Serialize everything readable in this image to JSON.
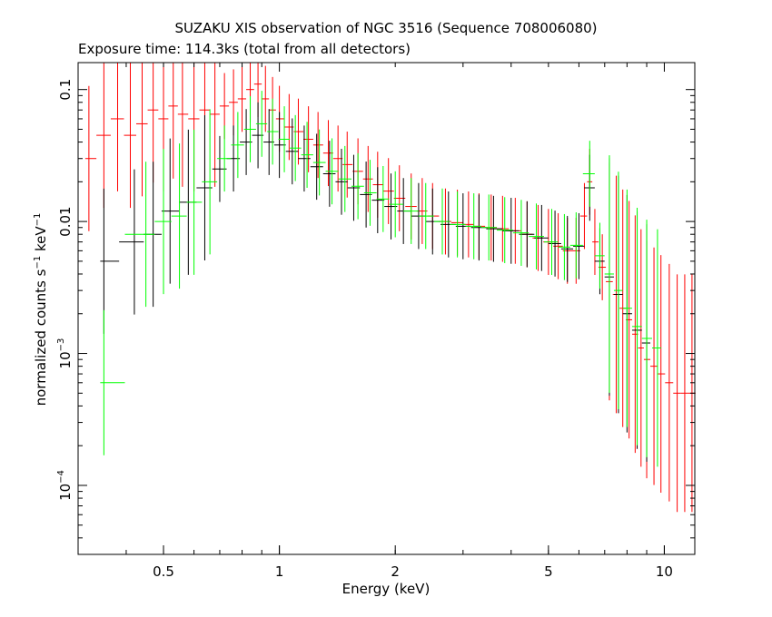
{
  "chart_data": {
    "type": "scatter",
    "title": "SUZAKU XIS observation of NGC 3516 (Sequence 708006080)",
    "subtitle": "Exposure time: 114.3ks (total from all detectors)",
    "xlabel": "Energy (keV)",
    "ylabel": {
      "prefix": "normalized counts s",
      "mid": " keV",
      "sup": "−1"
    },
    "x_scale": "log",
    "y_scale": "log",
    "xlim": [
      0.3,
      12
    ],
    "ylim": [
      3e-05,
      0.16
    ],
    "x_ticks": [
      {
        "value": 0.5,
        "label": "0.5"
      },
      {
        "value": 1,
        "label": "1"
      },
      {
        "value": 2,
        "label": "2"
      },
      {
        "value": 5,
        "label": "5"
      },
      {
        "value": 10,
        "label": "10"
      }
    ],
    "y_ticks": [
      {
        "value": 0.1,
        "label": "0.1",
        "sup": ""
      },
      {
        "value": 0.01,
        "label": "0.01",
        "sup": ""
      },
      {
        "value": 0.001,
        "label": "10",
        "sup": "−3"
      },
      {
        "value": 0.0001,
        "label": "10",
        "sup": "−4"
      }
    ],
    "series": [
      {
        "color": "#ff0000",
        "points": [
          {
            "x": 0.32,
            "y": 0.03
          },
          {
            "x": 0.35,
            "y": 0.045
          },
          {
            "x": 0.38,
            "y": 0.06
          },
          {
            "x": 0.41,
            "y": 0.045
          },
          {
            "x": 0.44,
            "y": 0.055
          },
          {
            "x": 0.47,
            "y": 0.07
          },
          {
            "x": 0.5,
            "y": 0.06
          },
          {
            "x": 0.53,
            "y": 0.075
          },
          {
            "x": 0.56,
            "y": 0.065
          },
          {
            "x": 0.6,
            "y": 0.06
          },
          {
            "x": 0.64,
            "y": 0.07
          },
          {
            "x": 0.68,
            "y": 0.065
          },
          {
            "x": 0.72,
            "y": 0.075
          },
          {
            "x": 0.76,
            "y": 0.08
          },
          {
            "x": 0.8,
            "y": 0.085
          },
          {
            "x": 0.84,
            "y": 0.1
          },
          {
            "x": 0.88,
            "y": 0.11
          },
          {
            "x": 0.92,
            "y": 0.085
          },
          {
            "x": 0.96,
            "y": 0.07
          },
          {
            "x": 1.0,
            "y": 0.06
          },
          {
            "x": 1.06,
            "y": 0.052
          },
          {
            "x": 1.12,
            "y": 0.048
          },
          {
            "x": 1.19,
            "y": 0.042
          },
          {
            "x": 1.26,
            "y": 0.038
          },
          {
            "x": 1.34,
            "y": 0.033
          },
          {
            "x": 1.42,
            "y": 0.03
          },
          {
            "x": 1.5,
            "y": 0.027
          },
          {
            "x": 1.6,
            "y": 0.024
          },
          {
            "x": 1.7,
            "y": 0.021
          },
          {
            "x": 1.8,
            "y": 0.019
          },
          {
            "x": 1.92,
            "y": 0.017
          },
          {
            "x": 2.05,
            "y": 0.015
          },
          {
            "x": 2.2,
            "y": 0.013
          },
          {
            "x": 2.35,
            "y": 0.012
          },
          {
            "x": 2.5,
            "y": 0.011
          },
          {
            "x": 2.7,
            "y": 0.01
          },
          {
            "x": 2.9,
            "y": 0.0098
          },
          {
            "x": 3.1,
            "y": 0.0095
          },
          {
            "x": 3.3,
            "y": 0.0092
          },
          {
            "x": 3.55,
            "y": 0.009
          },
          {
            "x": 3.8,
            "y": 0.0088
          },
          {
            "x": 4.1,
            "y": 0.0085
          },
          {
            "x": 4.4,
            "y": 0.008
          },
          {
            "x": 4.7,
            "y": 0.0075
          },
          {
            "x": 5.0,
            "y": 0.007
          },
          {
            "x": 5.3,
            "y": 0.0065
          },
          {
            "x": 5.6,
            "y": 0.006
          },
          {
            "x": 5.9,
            "y": 0.006
          },
          {
            "x": 6.2,
            "y": 0.011
          },
          {
            "x": 6.4,
            "y": 0.02
          },
          {
            "x": 6.6,
            "y": 0.007
          },
          {
            "x": 6.9,
            "y": 0.0045
          },
          {
            "x": 7.2,
            "y": 0.0035
          },
          {
            "x": 7.5,
            "y": 0.0028
          },
          {
            "x": 7.8,
            "y": 0.0022
          },
          {
            "x": 8.1,
            "y": 0.0018
          },
          {
            "x": 8.4,
            "y": 0.0014
          },
          {
            "x": 8.7,
            "y": 0.0011
          },
          {
            "x": 9.0,
            "y": 0.0009
          },
          {
            "x": 9.4,
            "y": 0.0008
          },
          {
            "x": 9.8,
            "y": 0.0007
          },
          {
            "x": 10.3,
            "y": 0.0006
          },
          {
            "x": 10.8,
            "y": 0.0005
          },
          {
            "x": 11.3,
            "y": 0.0005
          },
          {
            "x": 11.8,
            "y": 0.0005
          }
        ]
      },
      {
        "color": "#000000",
        "points": [
          {
            "x": 0.35,
            "y": 0.005
          },
          {
            "x": 0.42,
            "y": 0.007
          },
          {
            "x": 0.47,
            "y": 0.008
          },
          {
            "x": 0.52,
            "y": 0.012
          },
          {
            "x": 0.58,
            "y": 0.014
          },
          {
            "x": 0.64,
            "y": 0.018
          },
          {
            "x": 0.7,
            "y": 0.025
          },
          {
            "x": 0.76,
            "y": 0.03
          },
          {
            "x": 0.82,
            "y": 0.04
          },
          {
            "x": 0.88,
            "y": 0.045
          },
          {
            "x": 0.94,
            "y": 0.04
          },
          {
            "x": 1.0,
            "y": 0.038
          },
          {
            "x": 1.08,
            "y": 0.034
          },
          {
            "x": 1.16,
            "y": 0.03
          },
          {
            "x": 1.25,
            "y": 0.026
          },
          {
            "x": 1.35,
            "y": 0.023
          },
          {
            "x": 1.45,
            "y": 0.02
          },
          {
            "x": 1.56,
            "y": 0.018
          },
          {
            "x": 1.68,
            "y": 0.016
          },
          {
            "x": 1.8,
            "y": 0.0145
          },
          {
            "x": 1.95,
            "y": 0.013
          },
          {
            "x": 2.1,
            "y": 0.012
          },
          {
            "x": 2.3,
            "y": 0.011
          },
          {
            "x": 2.5,
            "y": 0.01
          },
          {
            "x": 2.75,
            "y": 0.0095
          },
          {
            "x": 3.0,
            "y": 0.0092
          },
          {
            "x": 3.3,
            "y": 0.009
          },
          {
            "x": 3.6,
            "y": 0.0088
          },
          {
            "x": 4.0,
            "y": 0.0085
          },
          {
            "x": 4.4,
            "y": 0.008
          },
          {
            "x": 4.8,
            "y": 0.0075
          },
          {
            "x": 5.2,
            "y": 0.0068
          },
          {
            "x": 5.6,
            "y": 0.0062
          },
          {
            "x": 6.0,
            "y": 0.0065
          },
          {
            "x": 6.4,
            "y": 0.018
          },
          {
            "x": 6.8,
            "y": 0.005
          },
          {
            "x": 7.2,
            "y": 0.0038
          },
          {
            "x": 7.6,
            "y": 0.0028
          },
          {
            "x": 8.0,
            "y": 0.002
          },
          {
            "x": 8.5,
            "y": 0.0015
          },
          {
            "x": 9.0,
            "y": 0.0012
          }
        ]
      },
      {
        "color": "#00ff00",
        "points": [
          {
            "x": 0.35,
            "y": 0.0006
          },
          {
            "x": 0.45,
            "y": 0.008
          },
          {
            "x": 0.5,
            "y": 0.01
          },
          {
            "x": 0.55,
            "y": 0.011
          },
          {
            "x": 0.6,
            "y": 0.014
          },
          {
            "x": 0.66,
            "y": 0.02
          },
          {
            "x": 0.72,
            "y": 0.03
          },
          {
            "x": 0.78,
            "y": 0.038
          },
          {
            "x": 0.84,
            "y": 0.05
          },
          {
            "x": 0.9,
            "y": 0.055
          },
          {
            "x": 0.96,
            "y": 0.048
          },
          {
            "x": 1.03,
            "y": 0.042
          },
          {
            "x": 1.1,
            "y": 0.036
          },
          {
            "x": 1.18,
            "y": 0.032
          },
          {
            "x": 1.27,
            "y": 0.028
          },
          {
            "x": 1.37,
            "y": 0.024
          },
          {
            "x": 1.48,
            "y": 0.021
          },
          {
            "x": 1.6,
            "y": 0.0185
          },
          {
            "x": 1.72,
            "y": 0.0165
          },
          {
            "x": 1.86,
            "y": 0.0148
          },
          {
            "x": 2.0,
            "y": 0.0135
          },
          {
            "x": 2.2,
            "y": 0.012
          },
          {
            "x": 2.4,
            "y": 0.011
          },
          {
            "x": 2.65,
            "y": 0.01
          },
          {
            "x": 2.9,
            "y": 0.0095
          },
          {
            "x": 3.2,
            "y": 0.0092
          },
          {
            "x": 3.5,
            "y": 0.009
          },
          {
            "x": 3.85,
            "y": 0.0086
          },
          {
            "x": 4.25,
            "y": 0.0082
          },
          {
            "x": 4.65,
            "y": 0.0077
          },
          {
            "x": 5.1,
            "y": 0.007
          },
          {
            "x": 5.5,
            "y": 0.0064
          },
          {
            "x": 5.9,
            "y": 0.0066
          },
          {
            "x": 6.4,
            "y": 0.023
          },
          {
            "x": 6.8,
            "y": 0.0055
          },
          {
            "x": 7.2,
            "y": 0.004
          },
          {
            "x": 7.6,
            "y": 0.003
          },
          {
            "x": 8.0,
            "y": 0.0022
          },
          {
            "x": 8.5,
            "y": 0.0016
          },
          {
            "x": 9.0,
            "y": 0.0013
          },
          {
            "x": 9.6,
            "y": 0.0011
          }
        ]
      }
    ]
  }
}
